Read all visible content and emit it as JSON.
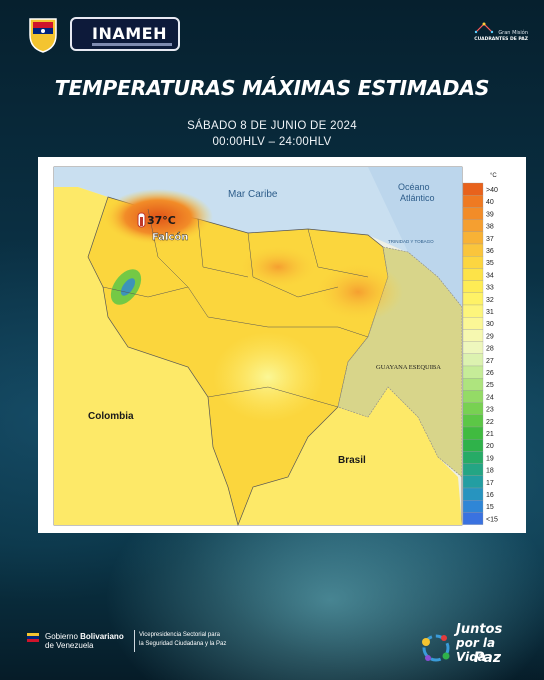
{
  "header": {
    "inameh_logo_text": "INAMEH",
    "mision_line1": "Gran Misión",
    "mision_line2": "CUADRANTES DE PAZ"
  },
  "title": "TEMPERATURAS MÁXIMAS ESTIMADAS",
  "date_line": "SÁBADO  8 DE JUNIO DE 2024",
  "hours_line": "00:00HLV  –  24:00HLV",
  "map": {
    "labels": {
      "mar_caribe": "Mar Caribe",
      "oceano_1": "Océano",
      "oceano_2": "Atlántico",
      "colombia": "Colombia",
      "brasil": "Brasil",
      "guayana": "GUAYANA ESEQUIBA",
      "trinidad": "TRINIDAD Y TOBAGO",
      "hotspot_value": "37°C",
      "hotspot_place": "Falcón"
    },
    "legend": {
      "unit": "°C",
      "entries": [
        {
          "label": ">40",
          "color": "#e8621c"
        },
        {
          "label": "40",
          "color": "#ef7a22"
        },
        {
          "label": "39",
          "color": "#f28c28"
        },
        {
          "label": "38",
          "color": "#f59f30"
        },
        {
          "label": "37",
          "color": "#f8b236"
        },
        {
          "label": "36",
          "color": "#fac53c"
        },
        {
          "label": "35",
          "color": "#fcd640"
        },
        {
          "label": "34",
          "color": "#fde348"
        },
        {
          "label": "33",
          "color": "#feec55"
        },
        {
          "label": "32",
          "color": "#fef266"
        },
        {
          "label": "31",
          "color": "#fdf57c"
        },
        {
          "label": "30",
          "color": "#fbf796"
        },
        {
          "label": "29",
          "color": "#f6f8b0"
        },
        {
          "label": "28",
          "color": "#eef7bd"
        },
        {
          "label": "27",
          "color": "#dcf2b0"
        },
        {
          "label": "26",
          "color": "#c6ec98"
        },
        {
          "label": "25",
          "color": "#aee47e"
        },
        {
          "label": "24",
          "color": "#94db66"
        },
        {
          "label": "23",
          "color": "#78d152"
        },
        {
          "label": "22",
          "color": "#5cc746"
        },
        {
          "label": "21",
          "color": "#40bb40"
        },
        {
          "label": "20",
          "color": "#2fb24a"
        },
        {
          "label": "19",
          "color": "#27ab66"
        },
        {
          "label": "18",
          "color": "#24a584"
        },
        {
          "label": "17",
          "color": "#239ea2"
        },
        {
          "label": "16",
          "color": "#2794bf"
        },
        {
          "label": "15",
          "color": "#2f86d6"
        },
        {
          "label": "<15",
          "color": "#3a72e0"
        }
      ]
    }
  },
  "footer": {
    "gob_bold": "Bolivariano",
    "gob_prefix": "Gobierno ",
    "gob_line2": "de Venezuela",
    "vice_line1": "Vicepresidencia Sectorial para",
    "vice_line2": "la Seguridad Ciudadana y la Paz",
    "juntos_1": "Juntos",
    "juntos_2": "por la Vida",
    "juntos_3": "Paz"
  },
  "colors": {
    "land_hot": "#f5a623",
    "land_warm": "#fbd63d",
    "land_mild": "#fde968",
    "guayana_fill": "#d8d58a",
    "sea": "#c9dff0"
  }
}
